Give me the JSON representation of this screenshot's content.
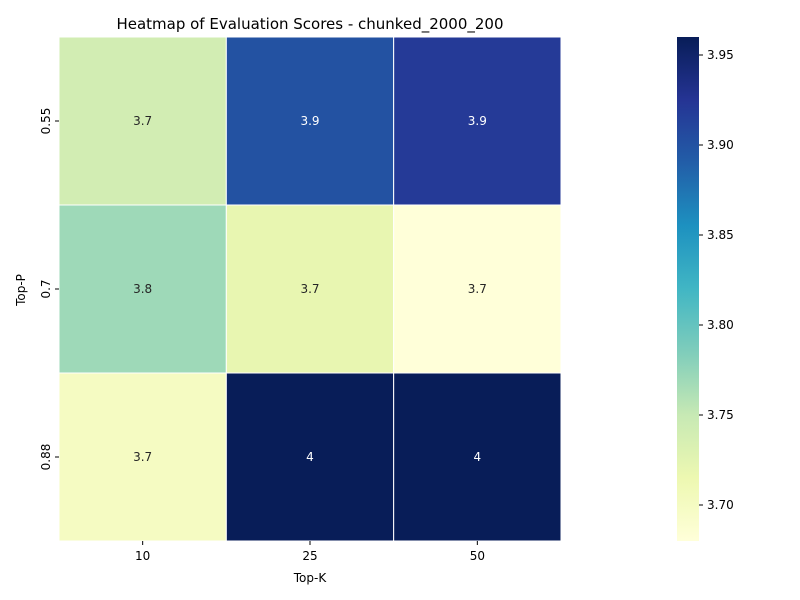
{
  "chart_data": {
    "type": "heatmap",
    "title": "Heatmap of Evaluation Scores - chunked_2000_200",
    "xlabel": "Top-K",
    "ylabel": "Top-P",
    "x_categories": [
      "10",
      "25",
      "50"
    ],
    "y_categories": [
      "0.55",
      "0.7",
      "0.88"
    ],
    "values": [
      [
        3.74,
        3.9,
        3.92
      ],
      [
        3.77,
        3.72,
        3.68
      ],
      [
        3.7,
        3.96,
        3.96
      ]
    ],
    "annotations": [
      [
        "3.7",
        "3.9",
        "3.9"
      ],
      [
        "3.8",
        "3.7",
        "3.7"
      ],
      [
        "3.7",
        "4",
        "4"
      ]
    ],
    "colormap": "YlGnBu",
    "color_range": [
      3.68,
      3.96
    ],
    "colorbar_ticks": [
      "3.70",
      "3.75",
      "3.80",
      "3.85",
      "3.90",
      "3.95"
    ],
    "colorbar_tick_values": [
      3.7,
      3.75,
      3.8,
      3.85,
      3.9,
      3.95
    ],
    "colors": {
      "stops": [
        "#ffffd9",
        "#edf8b1",
        "#c7e9b4",
        "#7fcdbb",
        "#41b6c4",
        "#1d91c0",
        "#225ea8",
        "#253494",
        "#081d58"
      ],
      "light_text": "#ffffff",
      "dark_text": "#262626"
    }
  }
}
